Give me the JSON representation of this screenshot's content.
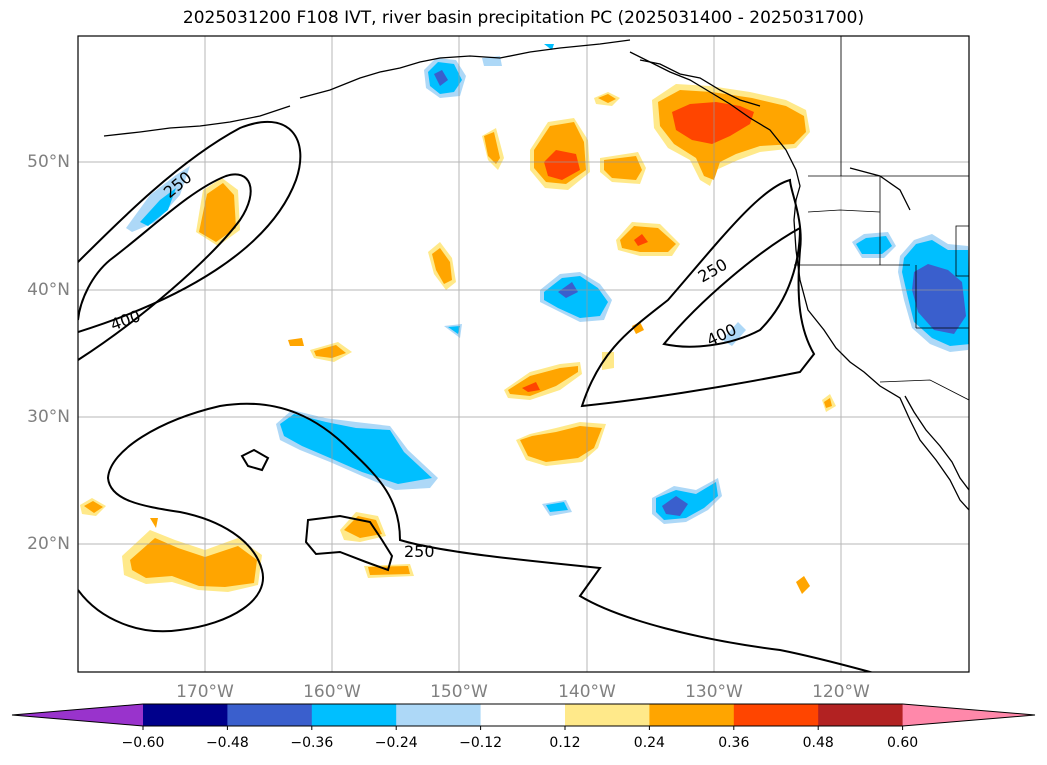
{
  "title": "2025031200 F108 IVT, river basin precipitation PC (2025031400 - 2025031700)",
  "lat_labels": [
    "50°N",
    "40°N",
    "30°N",
    "20°N"
  ],
  "lon_labels": [
    "170°W",
    "160°W",
    "150°W",
    "140°W",
    "130°W",
    "120°W"
  ],
  "contour_labels": [
    "250",
    "400",
    "250",
    "400",
    "250"
  ],
  "colorbar": {
    "ticks": [
      "−0.60",
      "−0.48",
      "−0.36",
      "−0.24",
      "−0.12",
      "0.12",
      "0.24",
      "0.36",
      "0.48",
      "0.60"
    ],
    "colors": [
      "#9933cc",
      "#00008b",
      "#3a5fcd",
      "#00bfff",
      "#add8f7",
      "#ffffff",
      "#ffe98a",
      "#ffa500",
      "#ff4500",
      "#b22222",
      "#ff88aa"
    ]
  }
}
